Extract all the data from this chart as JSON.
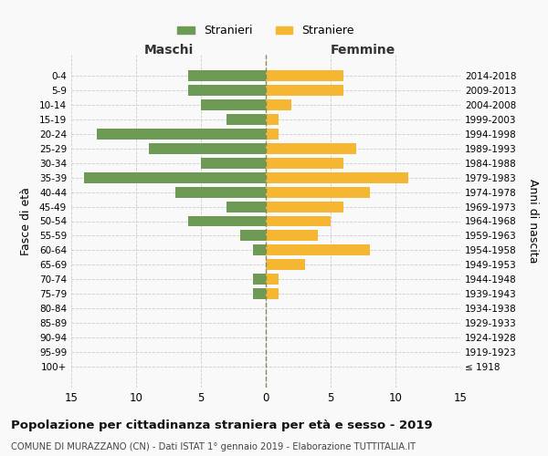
{
  "age_groups": [
    "100+",
    "95-99",
    "90-94",
    "85-89",
    "80-84",
    "75-79",
    "70-74",
    "65-69",
    "60-64",
    "55-59",
    "50-54",
    "45-49",
    "40-44",
    "35-39",
    "30-34",
    "25-29",
    "20-24",
    "15-19",
    "10-14",
    "5-9",
    "0-4"
  ],
  "birth_years": [
    "≤ 1918",
    "1919-1923",
    "1924-1928",
    "1929-1933",
    "1934-1938",
    "1939-1943",
    "1944-1948",
    "1949-1953",
    "1954-1958",
    "1959-1963",
    "1964-1968",
    "1969-1973",
    "1974-1978",
    "1979-1983",
    "1984-1988",
    "1989-1993",
    "1994-1998",
    "1999-2003",
    "2004-2008",
    "2009-2013",
    "2014-2018"
  ],
  "maschi": [
    0,
    0,
    0,
    0,
    0,
    1,
    1,
    0,
    1,
    2,
    6,
    3,
    7,
    14,
    5,
    9,
    13,
    3,
    5,
    6,
    6
  ],
  "femmine": [
    0,
    0,
    0,
    0,
    0,
    1,
    1,
    3,
    8,
    4,
    5,
    6,
    8,
    11,
    6,
    7,
    1,
    1,
    2,
    6,
    6
  ],
  "maschi_color": "#6d9b55",
  "femmine_color": "#f5b731",
  "bg_color": "#f9f9f9",
  "grid_color": "#cccccc",
  "title": "Popolazione per cittadinanza straniera per età e sesso - 2019",
  "subtitle": "COMUNE DI MURAZZANO (CN) - Dati ISTAT 1° gennaio 2019 - Elaborazione TUTTITALIA.IT",
  "ylabel_left": "Fasce di età",
  "ylabel_right": "Anni di nascita",
  "xlabel_maschi": "Maschi",
  "xlabel_femmine": "Femmine",
  "legend_maschi": "Stranieri",
  "legend_femmine": "Straniere",
  "xlim": 15,
  "bar_height": 0.75
}
